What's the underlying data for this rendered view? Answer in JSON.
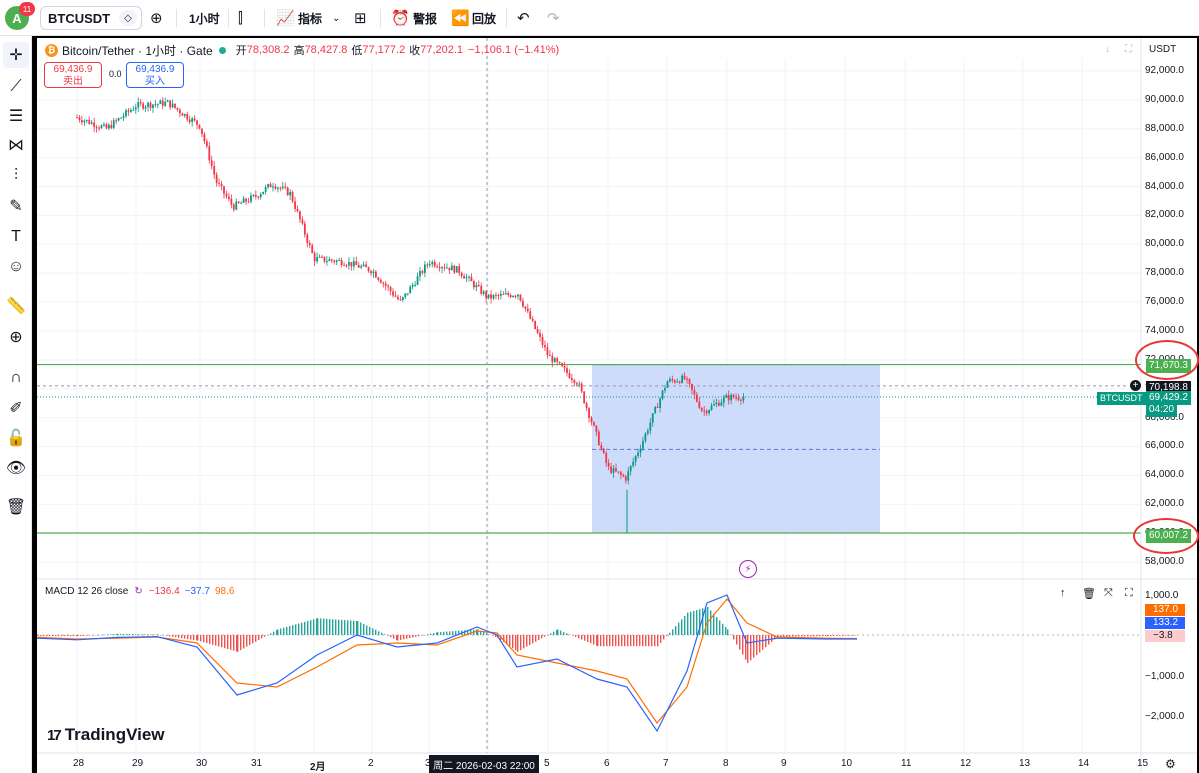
{
  "topbar": {
    "avatar_letter": "A",
    "notification_count": "11",
    "symbol": "BTCUSDT",
    "interval": "1小时",
    "indicators_label": "指标",
    "alert_label": "警报",
    "replay_label": "回放"
  },
  "legend": {
    "title": "Bitcoin/Tether · 1小时 · Gate",
    "open_label": "开",
    "open": "78,308.2",
    "high_label": "高",
    "high": "78,427.8",
    "low_label": "低",
    "low": "77,177.2",
    "close_label": "收",
    "close": "77,202.1",
    "change": "−1,106.1 (−1.41%)"
  },
  "trade": {
    "sell_price": "69,436.9",
    "sell_label": "卖出",
    "spread": "0.0",
    "buy_price": "69,436.9",
    "buy_label": "买入"
  },
  "currency": "USDT",
  "price_axis_labels": [
    "92,000.0",
    "90,000.0",
    "88,000.0",
    "86,000.0",
    "84,000.0",
    "82,000.0",
    "80,000.0",
    "78,000.0",
    "76,000.0",
    "74,000.0",
    "72,000.0",
    "70,000.0",
    "68,000.0",
    "66,000.0",
    "64,000.0",
    "62,000.0",
    "60,000.0",
    "58,000.0"
  ],
  "price_tags": {
    "upper_line": "71,670.3",
    "crosshair": "70,198.8",
    "last": "69,429.2",
    "countdown": "04:20",
    "lower_line": "60,007.2",
    "symbol_label": "BTCUSDT"
  },
  "macd": {
    "label": "MACD 12 26 close",
    "histogram": "−136.4",
    "macd": "−37.7",
    "signal": "98.6",
    "axis_labels": [
      "1,000.0",
      "−1,000.0",
      "−2,000.0"
    ],
    "tag_signal": "137.0",
    "tag_macd": "133.2",
    "tag_hist": "−3.8"
  },
  "time_axis": [
    "28",
    "29",
    "30",
    "31",
    "2月",
    "2",
    "3",
    "5",
    "6",
    "7",
    "8",
    "9",
    "10",
    "11",
    "12",
    "13",
    "14",
    "15"
  ],
  "crosshair_time": "周二 2026-02-03   22:00",
  "brand": "TradingView",
  "colors": {
    "up": "#089981",
    "down": "#f23645",
    "level_line": "#4caf50",
    "range_fill": "#c5d6fb",
    "macd_line": "#2962ff",
    "signal_line": "#ff6d00"
  },
  "chart_data": {
    "type": "candlestick",
    "y_axis": {
      "min": 58000,
      "max": 92000,
      "unit": "USDT"
    },
    "x_ticks": [
      "28",
      "29",
      "30",
      "31",
      "2月",
      "2",
      "3",
      "5",
      "6",
      "7",
      "8",
      "9",
      "10",
      "11",
      "12",
      "13",
      "14",
      "15"
    ],
    "levels": [
      71670.3,
      60007.2
    ],
    "price_range_box": {
      "from_day": "5",
      "to_day": "10",
      "top": 71670.3,
      "bottom": 60007.2,
      "mid": 65800
    },
    "close_path": [
      {
        "x": "28",
        "y": 88800
      },
      {
        "x": "28.5",
        "y": 88000
      },
      {
        "x": "29",
        "y": 89600
      },
      {
        "x": "29.5",
        "y": 89800
      },
      {
        "x": "30",
        "y": 88200
      },
      {
        "x": "30.3",
        "y": 84300
      },
      {
        "x": "30.6",
        "y": 82600
      },
      {
        "x": "31",
        "y": 83300
      },
      {
        "x": "31.3",
        "y": 84200
      },
      {
        "x": "31.6",
        "y": 83500
      },
      {
        "x": "2月",
        "y": 79000
      },
      {
        "x": "2月.5",
        "y": 78800
      },
      {
        "x": "2",
        "y": 78200
      },
      {
        "x": "2.5",
        "y": 76000
      },
      {
        "x": "3",
        "y": 78800
      },
      {
        "x": "3.5",
        "y": 78200
      },
      {
        "x": "4",
        "y": 76300
      },
      {
        "x": "4.5",
        "y": 76600
      },
      {
        "x": "5",
        "y": 72300
      },
      {
        "x": "5.5",
        "y": 70400
      },
      {
        "x": "6",
        "y": 64500
      },
      {
        "x": "6.3",
        "y": 63800
      },
      {
        "x": "6.6",
        "y": 66500
      },
      {
        "x": "7",
        "y": 70500
      },
      {
        "x": "7.3",
        "y": 70700
      },
      {
        "x": "7.6",
        "y": 68400
      },
      {
        "x": "8",
        "y": 69400
      },
      {
        "x": "8.3",
        "y": 69429
      }
    ]
  }
}
